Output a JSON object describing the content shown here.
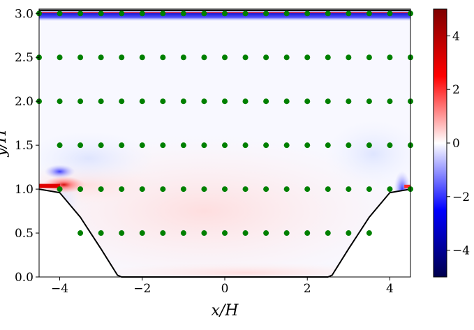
{
  "chart_data": {
    "type": "heatmap",
    "title": "",
    "xlabel": "x/H",
    "ylabel": "y/H",
    "xlim": [
      -4.5,
      4.5
    ],
    "ylim": [
      0.0,
      3.05
    ],
    "x_ticks": [
      -4,
      -2,
      0,
      2,
      4
    ],
    "x_tick_labels": [
      "−4",
      "−2",
      "0",
      "2",
      "4"
    ],
    "y_ticks": [
      0.0,
      0.5,
      1.0,
      1.5,
      2.0,
      2.5,
      3.0
    ],
    "y_tick_labels": [
      "0.0",
      "0.5",
      "1.0",
      "1.5",
      "2.0",
      "2.5",
      "3.0"
    ],
    "grid": false,
    "colorbar": {
      "range": [
        -5,
        5
      ],
      "ticks": [
        4,
        2,
        0,
        -2,
        -4
      ],
      "tick_labels": [
        "4",
        "2",
        "0",
        "−2",
        "−4"
      ],
      "colormap": "seismic",
      "colors": {
        "low": "#00004c",
        "mid": "#ffffff",
        "high": "#800000"
      }
    },
    "probe_points": {
      "color": "#008000",
      "x_start": -4.5,
      "x_step": 0.5,
      "rows": [
        {
          "y": 0.5,
          "x_from": -3.5,
          "x_to": 3.5
        },
        {
          "y": 1.0,
          "x_from": -4.0,
          "x_to": 4.5
        },
        {
          "y": 1.5,
          "x_from": -4.0,
          "x_to": 4.5
        },
        {
          "y": 2.0,
          "x_from": -4.5,
          "x_to": 4.5
        },
        {
          "y": 2.5,
          "x_from": -4.5,
          "x_to": 4.5
        },
        {
          "y": 3.0,
          "x_from": -4.5,
          "x_to": 4.5
        }
      ]
    },
    "hill_profile": {
      "description_points": [
        [
          -4.5,
          1.0
        ],
        [
          -4.0,
          0.96
        ],
        [
          -3.5,
          0.68
        ],
        [
          -3.0,
          0.32
        ],
        [
          -2.6,
          0.02
        ],
        [
          -2.5,
          0.0
        ],
        [
          2.5,
          0.0
        ],
        [
          2.6,
          0.02
        ],
        [
          3.0,
          0.32
        ],
        [
          3.5,
          0.68
        ],
        [
          4.0,
          0.96
        ],
        [
          4.5,
          1.0
        ]
      ],
      "color": "#000000"
    },
    "top_wall_y": 3.035
  }
}
